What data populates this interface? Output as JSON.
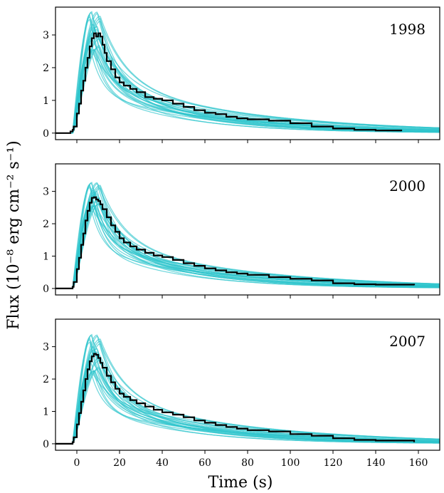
{
  "chart_data": {
    "type": "line",
    "xlabel": "Time (s)",
    "ylabel": "Flux (10⁻⁸ erg cm⁻² s⁻¹)",
    "xlim": [
      -10,
      170
    ],
    "ylim": [
      -0.2,
      3.85
    ],
    "xticks": [
      0,
      20,
      40,
      60,
      80,
      100,
      120,
      140,
      160
    ],
    "yticks": [
      0,
      1,
      2,
      3
    ],
    "grid": false,
    "shared_x": true,
    "model_color": "#2ec4cc",
    "data_color": "#000000",
    "panels": [
      {
        "label": "1998",
        "model_peak_min": 2.55,
        "model_peak_max": 3.72,
        "data_series": [
          [
            -3,
            0.05
          ],
          [
            -2,
            0.1
          ],
          [
            -1.5,
            0.2
          ],
          [
            0,
            0.6
          ],
          [
            1,
            0.9
          ],
          [
            2,
            1.3
          ],
          [
            3,
            1.6
          ],
          [
            4,
            2.0
          ],
          [
            5,
            2.3
          ],
          [
            6,
            2.65
          ],
          [
            7,
            2.9
          ],
          [
            8,
            3.05
          ],
          [
            9,
            2.95
          ],
          [
            10,
            3.05
          ],
          [
            11,
            2.95
          ],
          [
            12,
            2.7
          ],
          [
            13,
            2.45
          ],
          [
            14,
            2.2
          ],
          [
            16,
            1.95
          ],
          [
            18,
            1.7
          ],
          [
            20,
            1.55
          ],
          [
            22,
            1.45
          ],
          [
            25,
            1.35
          ],
          [
            28,
            1.25
          ],
          [
            32,
            1.1
          ],
          [
            36,
            1.05
          ],
          [
            40,
            1.0
          ],
          [
            45,
            0.9
          ],
          [
            50,
            0.8
          ],
          [
            55,
            0.7
          ],
          [
            60,
            0.62
          ],
          [
            65,
            0.58
          ],
          [
            70,
            0.5
          ],
          [
            75,
            0.45
          ],
          [
            80,
            0.42
          ],
          [
            90,
            0.38
          ],
          [
            100,
            0.3
          ],
          [
            110,
            0.2
          ],
          [
            120,
            0.14
          ],
          [
            130,
            0.1
          ],
          [
            140,
            0.08
          ],
          [
            152,
            0.06
          ]
        ]
      },
      {
        "label": "2000",
        "model_peak_min": 2.55,
        "model_peak_max": 3.28,
        "data_series": [
          [
            -3,
            0.0
          ],
          [
            -2,
            0.05
          ],
          [
            -1.5,
            0.2
          ],
          [
            0,
            0.6
          ],
          [
            1,
            0.95
          ],
          [
            2,
            1.35
          ],
          [
            3,
            1.7
          ],
          [
            4,
            2.1
          ],
          [
            5,
            2.4
          ],
          [
            6,
            2.65
          ],
          [
            7,
            2.8
          ],
          [
            8,
            2.82
          ],
          [
            9,
            2.75
          ],
          [
            10,
            2.7
          ],
          [
            11,
            2.6
          ],
          [
            12,
            2.45
          ],
          [
            14,
            2.2
          ],
          [
            16,
            1.95
          ],
          [
            18,
            1.75
          ],
          [
            20,
            1.55
          ],
          [
            22,
            1.42
          ],
          [
            25,
            1.3
          ],
          [
            28,
            1.2
          ],
          [
            32,
            1.1
          ],
          [
            36,
            1.02
          ],
          [
            40,
            0.97
          ],
          [
            45,
            0.88
          ],
          [
            50,
            0.78
          ],
          [
            55,
            0.7
          ],
          [
            60,
            0.62
          ],
          [
            65,
            0.56
          ],
          [
            70,
            0.5
          ],
          [
            75,
            0.46
          ],
          [
            80,
            0.42
          ],
          [
            90,
            0.35
          ],
          [
            100,
            0.3
          ],
          [
            110,
            0.25
          ],
          [
            120,
            0.16
          ],
          [
            130,
            0.13
          ],
          [
            140,
            0.12
          ],
          [
            158,
            0.1
          ]
        ]
      },
      {
        "label": "2007",
        "model_peak_min": 2.25,
        "model_peak_max": 3.38,
        "data_series": [
          [
            -3,
            0.0
          ],
          [
            -2,
            0.05
          ],
          [
            -1.5,
            0.2
          ],
          [
            0,
            0.6
          ],
          [
            1,
            0.95
          ],
          [
            2,
            1.3
          ],
          [
            3,
            1.65
          ],
          [
            4,
            2.0
          ],
          [
            5,
            2.3
          ],
          [
            6,
            2.55
          ],
          [
            7,
            2.7
          ],
          [
            8,
            2.78
          ],
          [
            9,
            2.75
          ],
          [
            10,
            2.65
          ],
          [
            11,
            2.5
          ],
          [
            12,
            2.35
          ],
          [
            14,
            2.1
          ],
          [
            16,
            1.9
          ],
          [
            18,
            1.7
          ],
          [
            20,
            1.55
          ],
          [
            22,
            1.45
          ],
          [
            25,
            1.35
          ],
          [
            28,
            1.25
          ],
          [
            32,
            1.15
          ],
          [
            36,
            1.05
          ],
          [
            40,
            0.97
          ],
          [
            45,
            0.9
          ],
          [
            50,
            0.82
          ],
          [
            55,
            0.72
          ],
          [
            60,
            0.65
          ],
          [
            65,
            0.58
          ],
          [
            70,
            0.52
          ],
          [
            75,
            0.47
          ],
          [
            80,
            0.42
          ],
          [
            90,
            0.38
          ],
          [
            100,
            0.3
          ],
          [
            110,
            0.25
          ],
          [
            120,
            0.17
          ],
          [
            130,
            0.12
          ],
          [
            140,
            0.1
          ],
          [
            158,
            0.05
          ]
        ]
      }
    ]
  }
}
